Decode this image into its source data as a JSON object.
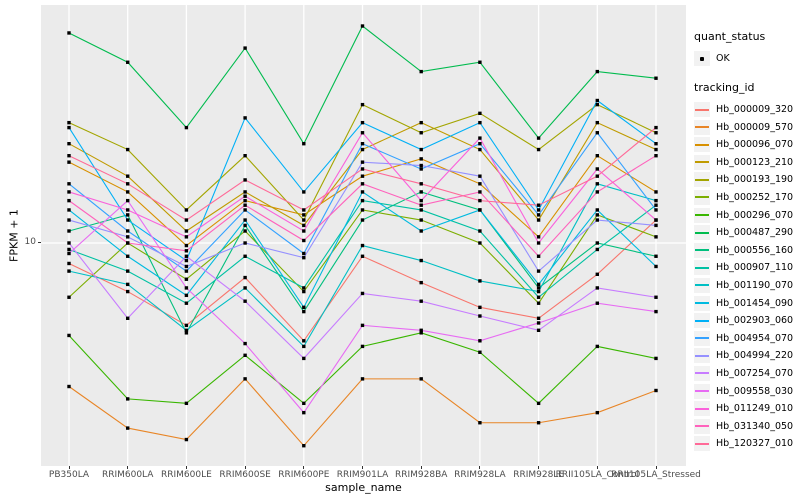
{
  "axes": {
    "y_title": "FPKM + 1",
    "x_title": "sample_name",
    "y_tick_label": "10"
  },
  "legend": {
    "quant_title": "quant_status",
    "quant_value": "OK",
    "tracking_title": "tracking_id"
  },
  "colors": {
    "panel_bg": "#EBEBEB",
    "grid": "#FFFFFF",
    "tick_text": "#4D4D4D",
    "point": "#000000",
    "legend_key_bg": "#F2F2F2"
  },
  "chart_data": {
    "type": "line",
    "title": "",
    "xlabel": "sample_name",
    "ylabel": "FPKM + 1",
    "y_scale": "log10",
    "y_tick_labels": [
      "10"
    ],
    "ylim_approx": [
      1.7,
      65
    ],
    "grid": "ggplot-white-on-grey",
    "legend_position": "right",
    "quant_status_value": "OK",
    "categories": [
      "PB350LA",
      "RRIM600LA",
      "RRIM600LE",
      "RRIM600SE",
      "RRIM600PE",
      "RRIM901LA",
      "RRIM928BA",
      "RRIM928LA",
      "RRIM928LE",
      "RRII105LA_Control",
      "RRII105LA_Stressed"
    ],
    "series": [
      {
        "name": "Hb_000009_320",
        "color": "#F8766D",
        "values": [
          8.5,
          6.8,
          5.2,
          7.6,
          4.6,
          9.0,
          7.3,
          6.0,
          5.5,
          7.8,
          12.0
        ]
      },
      {
        "name": "Hb_000009_570",
        "color": "#E88526",
        "values": [
          3.2,
          2.3,
          2.1,
          3.4,
          2.0,
          3.4,
          3.4,
          2.4,
          2.4,
          2.6,
          3.1
        ]
      },
      {
        "name": "Hb_000096_070",
        "color": "#D89000",
        "values": [
          19.0,
          15.0,
          9.8,
          14.0,
          12.5,
          17.0,
          19.5,
          16.0,
          10.5,
          20.0,
          15.0
        ]
      },
      {
        "name": "Hb_000123_210",
        "color": "#C09B00",
        "values": [
          22.0,
          17.0,
          11.0,
          15.0,
          11.5,
          21.0,
          26.0,
          21.0,
          12.0,
          26.0,
          21.0
        ]
      },
      {
        "name": "Hb_000193_190",
        "color": "#A3A500",
        "values": [
          26.0,
          21.0,
          13.0,
          20.0,
          12.0,
          30.0,
          24.0,
          28.0,
          21.0,
          30.0,
          24.0
        ]
      },
      {
        "name": "Hb_000252_170",
        "color": "#7CAE00",
        "values": [
          6.5,
          10.0,
          7.5,
          11.0,
          6.8,
          13.0,
          12.0,
          10.0,
          6.2,
          12.5,
          10.5
        ]
      },
      {
        "name": "Hb_000296_070",
        "color": "#39B600",
        "values": [
          4.8,
          2.9,
          2.8,
          4.1,
          2.8,
          4.4,
          4.9,
          4.2,
          2.8,
          4.4,
          4.0
        ]
      },
      {
        "name": "Hb_000487_290",
        "color": "#00BB4E",
        "values": [
          53.0,
          42.0,
          25.0,
          47.0,
          22.0,
          56.0,
          39.0,
          42.0,
          23.0,
          39.0,
          37.0
        ]
      },
      {
        "name": "Hb_000556_160",
        "color": "#00BF7D",
        "values": [
          11.0,
          12.5,
          4.9,
          11.5,
          5.8,
          12.0,
          15.0,
          13.0,
          7.0,
          10.0,
          9.0
        ]
      },
      {
        "name": "Hb_000907_110",
        "color": "#00C1A3",
        "values": [
          9.5,
          8.0,
          6.2,
          9.0,
          7.0,
          14.0,
          13.0,
          11.0,
          6.5,
          9.5,
          13.5
        ]
      },
      {
        "name": "Hb_001190_070",
        "color": "#00BFC4",
        "values": [
          8.0,
          7.2,
          5.0,
          7.0,
          4.4,
          9.8,
          8.7,
          7.4,
          6.8,
          16.0,
          14.0
        ]
      },
      {
        "name": "Hb_001454_090",
        "color": "#00BAE0",
        "values": [
          13.0,
          9.0,
          6.6,
          12.0,
          6.0,
          15.0,
          11.0,
          13.0,
          7.2,
          13.0,
          8.3
        ]
      },
      {
        "name": "Hb_002903_060",
        "color": "#00B0F6",
        "values": [
          25.0,
          12.0,
          8.7,
          27.0,
          15.0,
          26.0,
          21.0,
          26.0,
          13.0,
          31.0,
          22.0
        ]
      },
      {
        "name": "Hb_004954_070",
        "color": "#35A2FF",
        "values": [
          16.0,
          11.0,
          8.0,
          13.0,
          9.2,
          22.0,
          18.0,
          22.0,
          12.5,
          24.0,
          13.0
        ]
      },
      {
        "name": "Hb_004994_220",
        "color": "#9590FF",
        "values": [
          12.0,
          10.5,
          8.3,
          10.0,
          8.9,
          19.0,
          18.5,
          17.0,
          8.0,
          12.0,
          11.5
        ]
      },
      {
        "name": "Hb_007254_070",
        "color": "#C77CFF",
        "values": [
          10.0,
          5.5,
          9.0,
          6.3,
          4.0,
          6.7,
          6.3,
          5.6,
          5.0,
          7.0,
          6.5
        ]
      },
      {
        "name": "Hb_009558_030",
        "color": "#E76BF3",
        "values": [
          9.2,
          14.0,
          7.0,
          4.5,
          2.6,
          5.2,
          5.0,
          4.6,
          5.3,
          6.2,
          5.8
        ]
      },
      {
        "name": "Hb_011249_010",
        "color": "#FA62DB",
        "values": [
          15.0,
          13.0,
          10.5,
          14.5,
          11.0,
          24.0,
          14.0,
          23.0,
          10.0,
          18.0,
          12.0
        ]
      },
      {
        "name": "Hb_031340_050",
        "color": "#FF62BC",
        "values": [
          14.0,
          10.0,
          9.4,
          13.5,
          10.2,
          16.0,
          13.5,
          15.0,
          9.0,
          15.0,
          20.0
        ]
      },
      {
        "name": "Hb_120327_010",
        "color": "#FF6A98",
        "values": [
          20.0,
          16.0,
          12.0,
          16.5,
          13.0,
          18.0,
          16.0,
          14.0,
          13.5,
          17.0,
          25.0
        ]
      }
    ]
  }
}
